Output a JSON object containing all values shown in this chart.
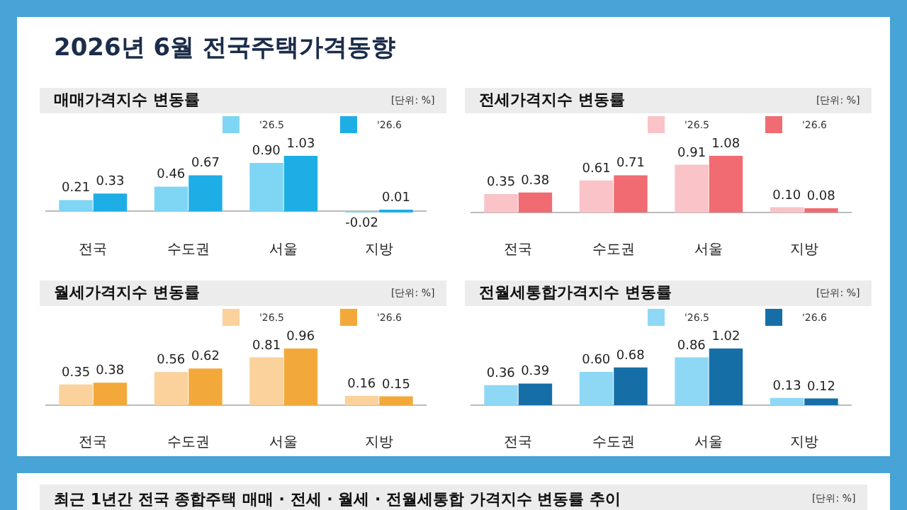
{
  "chart_data": [
    {
      "type": "other",
      "title": "2026년 6월 전국주택가격동향"
    },
    {
      "type": "bar",
      "title": "매매가격지수 변동률",
      "annotations": [
        "[단위: %]"
      ],
      "categories": [
        "전국",
        "수도권",
        "서울",
        "지방"
      ],
      "series": [
        {
          "name": "'26.5",
          "color": "#7fd6f4",
          "values": [
            0.21,
            0.46,
            0.9,
            -0.02
          ],
          "value_labels": [
            "0.21",
            "0.46",
            "0.90",
            "-0.02"
          ]
        },
        {
          "name": "'26.6",
          "color": "#1eaee6",
          "values": [
            0.33,
            0.67,
            1.03,
            0.01
          ],
          "value_labels": [
            "0.33",
            "0.67",
            "1.03",
            "0.01"
          ]
        }
      ],
      "legend": "top right"
    },
    {
      "type": "bar",
      "title": "전세가격지수 변동률",
      "annotations": [
        "[단위: %]"
      ],
      "categories": [
        "전국",
        "수도권",
        "서울",
        "지방"
      ],
      "series": [
        {
          "name": "'26.5",
          "color": "#f9c3c7",
          "values": [
            0.35,
            0.61,
            0.91,
            0.1
          ],
          "value_labels": [
            "0.35",
            "0.61",
            "0.91",
            "0.10"
          ]
        },
        {
          "name": "'26.6",
          "color": "#f06c72",
          "values": [
            0.38,
            0.71,
            1.08,
            0.08
          ],
          "value_labels": [
            "0.38",
            "0.71",
            "1.08",
            "0.08"
          ]
        }
      ],
      "legend": "top right"
    },
    {
      "type": "bar",
      "title": "월세가격지수 변동률",
      "annotations": [
        "[단위: %]"
      ],
      "categories": [
        "전국",
        "수도권",
        "서울",
        "지방"
      ],
      "series": [
        {
          "name": "'26.5",
          "color": "#fbd19c",
          "values": [
            0.35,
            0.56,
            0.81,
            0.16
          ],
          "value_labels": [
            "0.35",
            "0.56",
            "0.81",
            "0.16"
          ]
        },
        {
          "name": "'26.6",
          "color": "#f3a93a",
          "values": [
            0.38,
            0.62,
            0.96,
            0.15
          ],
          "value_labels": [
            "0.38",
            "0.62",
            "0.96",
            "0.15"
          ]
        }
      ],
      "legend": "top right"
    },
    {
      "type": "bar",
      "title": "전월세통합가격지수 변동률",
      "annotations": [
        "[단위: %]"
      ],
      "categories": [
        "전국",
        "수도권",
        "서울",
        "지방"
      ],
      "series": [
        {
          "name": "'26.5",
          "color": "#8ed8f5",
          "values": [
            0.36,
            0.6,
            0.86,
            0.13
          ],
          "value_labels": [
            "0.36",
            "0.60",
            "0.86",
            "0.13"
          ]
        },
        {
          "name": "'26.6",
          "color": "#156fa6",
          "values": [
            0.39,
            0.68,
            1.02,
            0.12
          ],
          "value_labels": [
            "0.39",
            "0.68",
            "1.02",
            "0.12"
          ]
        }
      ],
      "legend": "top right"
    },
    {
      "type": "other",
      "title": "최근 1년간 전국 종합주택 매매 · 전세 · 월세 · 전월세통합 가격지수 변동률 추이",
      "annotations": [
        "[단위: %]"
      ]
    }
  ]
}
